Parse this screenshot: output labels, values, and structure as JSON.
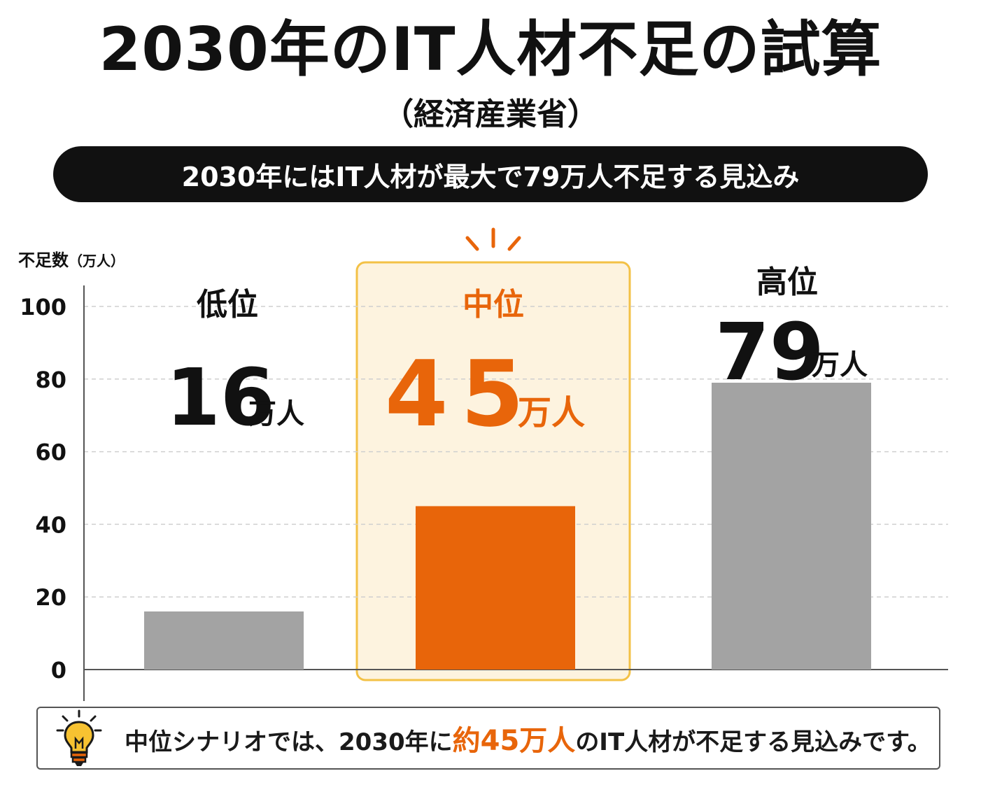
{
  "title": "2030年のIT人材不足の試算",
  "source": "（経済産業省）",
  "banner": "2030年にはIT人材が最大で79万人不足する見込み",
  "colors": {
    "gray_bar": "#a3a3a3",
    "accent": "#e8650a",
    "highlight_fill": "#fdf3df",
    "highlight_border": "#f3c146",
    "text": "#111111"
  },
  "chart_data": {
    "type": "bar",
    "ylabel": "不足数",
    "ylabel_unit": "（万人）",
    "ylim": [
      0,
      100
    ],
    "yticks": [
      0,
      20,
      40,
      60,
      80,
      100
    ],
    "grid": true,
    "categories": [
      "低位",
      "中位",
      "高位"
    ],
    "values": [
      16,
      45,
      79
    ],
    "value_labels": [
      "16",
      "45",
      "79"
    ],
    "value_unit": "万人",
    "highlight": "中位"
  },
  "callout": {
    "icon": "lightbulb-icon",
    "before": "中位シナリオでは、2030年に",
    "highlight": "約45万人",
    "after": "のIT人材が不足する見込みです。"
  }
}
